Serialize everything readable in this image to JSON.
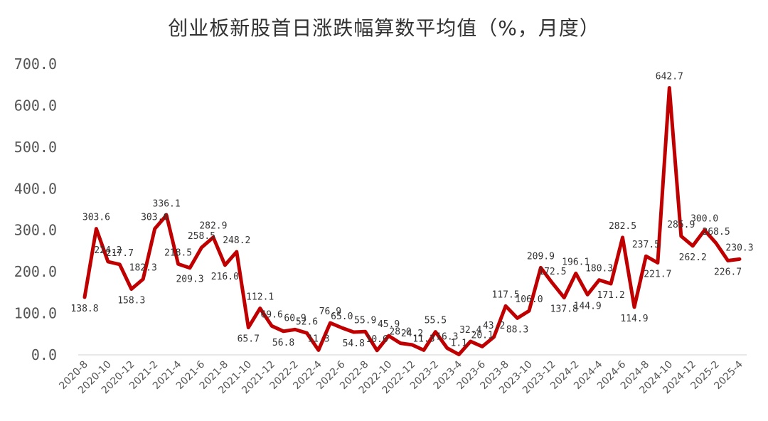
{
  "chart_data": {
    "type": "line",
    "title": "创业板新股首日涨跌幅算数平均值（%，月度）",
    "xlabel": "",
    "ylabel": "",
    "ylim": [
      0,
      700
    ],
    "yticks": [
      "0.0",
      "100.0",
      "200.0",
      "300.0",
      "400.0",
      "500.0",
      "600.0",
      "700.0"
    ],
    "grid": false,
    "line_color": "#C00000",
    "x": [
      "2020-8",
      "2020-9",
      "2020-10",
      "2020-11",
      "2020-12",
      "2021-1",
      "2021-2",
      "2021-3",
      "2021-4",
      "2021-5",
      "2021-6",
      "2021-7",
      "2021-8",
      "2021-9",
      "2021-10",
      "2021-11",
      "2021-12",
      "2022-1",
      "2022-2",
      "2022-3",
      "2022-4",
      "2022-5",
      "2022-6",
      "2022-7",
      "2022-8",
      "2022-9",
      "2022-10",
      "2022-11",
      "2022-12",
      "2023-1",
      "2023-2",
      "2023-3",
      "2023-4",
      "2023-5",
      "2023-6",
      "2023-7",
      "2023-8",
      "2023-9",
      "2023-10",
      "2023-11",
      "2023-12",
      "2024-1",
      "2024-2",
      "2024-3",
      "2024-4",
      "2024-5",
      "2024-6",
      "2024-7",
      "2024-8",
      "2024-9",
      "2024-10",
      "2024-11",
      "2024-12",
      "2025-1",
      "2025-2",
      "2025-3",
      "2025-4"
    ],
    "xtick_labels": [
      "2020-8",
      "2020-10",
      "2020-12",
      "2021-2",
      "2021-4",
      "2021-6",
      "2021-8",
      "2021-10",
      "2021-12",
      "2022-2",
      "2022-4",
      "2022-6",
      "2022-8",
      "2022-10",
      "2022-12",
      "2023-2",
      "2023-4",
      "2023-6",
      "2023-8",
      "2023-10",
      "2023-12",
      "2024-2",
      "2024-4",
      "2024-6",
      "2024-8",
      "2024-10",
      "2024-12",
      "2025-2",
      "2025-4"
    ],
    "values": [
      138.8,
      303.6,
      224.2,
      217.7,
      158.3,
      182.3,
      303.6,
      336.1,
      218.5,
      209.3,
      258.5,
      282.9,
      216.0,
      248.2,
      65.7,
      112.1,
      69.6,
      56.8,
      60.9,
      52.6,
      11.3,
      76.9,
      65.0,
      54.8,
      55.9,
      10.6,
      45.9,
      28.0,
      24.2,
      11.3,
      55.5,
      16.3,
      1.1,
      32.4,
      20.1,
      43.2,
      117.5,
      88.3,
      106.0,
      209.9,
      172.5,
      137.8,
      196.1,
      144.9,
      180.3,
      171.2,
      282.5,
      114.9,
      237.5,
      221.7,
      642.7,
      285.9,
      262.2,
      300.0,
      268.5,
      226.7,
      230.3
    ],
    "data_labels": [
      "138.8",
      "303.6",
      "224.2",
      "217.7",
      "158.3",
      "182.3",
      "303.6",
      "336.1",
      "218.5",
      "209.3",
      "258.5",
      "282.9",
      "216.0",
      "248.2",
      "65.7",
      "112.1",
      "69.6",
      "56.8",
      "60.9",
      "52.6",
      "11.3",
      "76.9",
      "65.0",
      "54.8",
      "55.9",
      "10.6",
      "45.9",
      "28.0",
      "24.2",
      "11.3",
      "55.5",
      "16.3",
      "1.1",
      "32.4",
      "20.1",
      "43.2",
      "117.5",
      "88.3",
      "106.0",
      "209.9",
      "172.5",
      "137.8",
      "196.1",
      "144.9",
      "180.3",
      "171.2",
      "282.5",
      "114.9",
      "237.5",
      "221.7",
      "642.7",
      "285.9",
      "262.2",
      "300.0",
      "268.5",
      "226.7",
      "230.3"
    ]
  }
}
